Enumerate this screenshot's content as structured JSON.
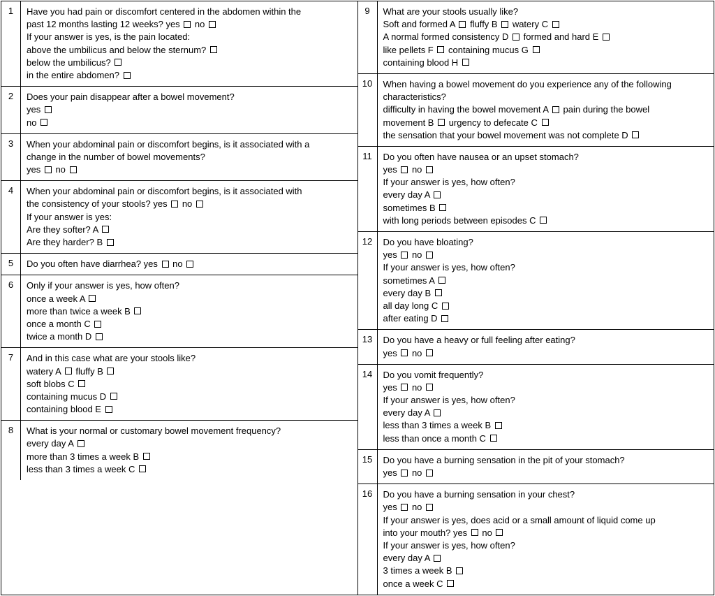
{
  "left": [
    {
      "num": "1",
      "lines": [
        [
          {
            "t": "Have you had pain or discomfort centered in the abdomen within the"
          }
        ],
        [
          {
            "t": "past 12 months lasting 12 weeks?  yes "
          },
          {
            "cb": true
          },
          {
            "t": " no "
          },
          {
            "cb": true
          }
        ],
        [
          {
            "t": "If your answer is yes, is the pain located:"
          }
        ],
        [
          {
            "t": "above the umbilicus and below the sternum?  "
          },
          {
            "cb": true
          }
        ],
        [
          {
            "t": "below the umbilicus?  "
          },
          {
            "cb": true
          }
        ],
        [
          {
            "t": "in the entire abdomen?  "
          },
          {
            "cb": true
          }
        ]
      ]
    },
    {
      "num": "2",
      "lines": [
        [
          {
            "t": "Does your pain disappear after a bowel movement?"
          }
        ],
        [
          {
            "t": "yes "
          },
          {
            "cb": true
          }
        ],
        [
          {
            "t": "no  "
          },
          {
            "cb": true
          }
        ]
      ]
    },
    {
      "num": "3",
      "lines": [
        [
          {
            "t": "When your abdominal pain or discomfort begins, is it associated with a"
          }
        ],
        [
          {
            "t": "change in the number of bowel movements?"
          }
        ],
        [
          {
            "t": "yes "
          },
          {
            "cb": true
          },
          {
            "t": "  no "
          },
          {
            "cb": true
          }
        ]
      ]
    },
    {
      "num": "4",
      "lines": [
        [
          {
            "t": "When your abdominal pain or discomfort begins, is it associated with"
          }
        ],
        [
          {
            "t": "the consistency of your stools?  yes "
          },
          {
            "cb": true
          },
          {
            "t": "   no  "
          },
          {
            "cb": true
          }
        ],
        [
          {
            "t": "If your answer is yes:"
          }
        ],
        [
          {
            "t": "Are they softer? A  "
          },
          {
            "cb": true
          }
        ],
        [
          {
            "t": "Are they harder? B  "
          },
          {
            "cb": true
          }
        ]
      ]
    },
    {
      "num": "5",
      "lines": [
        [
          {
            "t": "Do you often have diarrhea? yes  "
          },
          {
            "cb": true
          },
          {
            "t": "    no "
          },
          {
            "cb": true
          }
        ]
      ]
    },
    {
      "num": "6",
      "lines": [
        [
          {
            "t": "Only if your answer is yes, how often?"
          }
        ],
        [
          {
            "t": "once a week A  "
          },
          {
            "cb": true
          }
        ],
        [
          {
            "t": "more than twice a week B "
          },
          {
            "cb": true
          }
        ],
        [
          {
            "t": "once a month C "
          },
          {
            "cb": true
          }
        ],
        [
          {
            "t": "twice a month D "
          },
          {
            "cb": true
          }
        ]
      ]
    },
    {
      "num": "7",
      "lines": [
        [
          {
            "t": "And in this case what are your stools like?"
          }
        ],
        [
          {
            "t": "watery A "
          },
          {
            "cb": true
          },
          {
            "t": " fluffy B "
          },
          {
            "cb": true
          }
        ],
        [
          {
            "t": "soft blobs C  "
          },
          {
            "cb": true
          }
        ],
        [
          {
            "t": "containing mucus D  "
          },
          {
            "cb": true
          }
        ],
        [
          {
            "t": "containing blood E  "
          },
          {
            "cb": true
          }
        ]
      ]
    },
    {
      "num": "8",
      "lines": [
        [
          {
            "t": "What is your normal or customary bowel movement frequency?"
          }
        ],
        [
          {
            "t": "every day A  "
          },
          {
            "cb": true
          }
        ],
        [
          {
            "t": "more than 3 times a week B "
          },
          {
            "cb": true
          }
        ],
        [
          {
            "t": "less than 3 times a week C "
          },
          {
            "cb": true
          }
        ],
        [
          {
            "t": " "
          }
        ]
      ]
    }
  ],
  "right": [
    {
      "num": "9",
      "lines": [
        [
          {
            "t": "What are your stools usually like?"
          }
        ],
        [
          {
            "t": "Soft and formed A "
          },
          {
            "cb": true
          },
          {
            "t": "   fluffy B  "
          },
          {
            "cb": true
          },
          {
            "t": "  watery C  "
          },
          {
            "cb": true
          }
        ],
        [
          {
            "t": "A normal formed consistency D "
          },
          {
            "cb": true
          },
          {
            "t": "  formed and hard E "
          },
          {
            "cb": true
          }
        ],
        [
          {
            "t": "like pellets F  "
          },
          {
            "cb": true
          },
          {
            "t": "  containing mucus G  "
          },
          {
            "cb": true
          }
        ],
        [
          {
            "t": "containing blood H "
          },
          {
            "cb": true
          }
        ]
      ]
    },
    {
      "num": "10",
      "lines": [
        [
          {
            "t": "When having a bowel movement do you experience any of the following"
          }
        ],
        [
          {
            "t": "characteristics?"
          }
        ],
        [
          {
            "t": "difficulty in having the bowel movement  A "
          },
          {
            "cb": true
          },
          {
            "t": "  pain during the bowel"
          }
        ],
        [
          {
            "t": "movement B "
          },
          {
            "cb": true
          },
          {
            "t": "  urgency to defecate C "
          },
          {
            "cb": true
          }
        ],
        [
          {
            "t": "the sensation that your bowel movement was not complete D "
          },
          {
            "cb": true
          }
        ]
      ]
    },
    {
      "num": "11",
      "lines": [
        [
          {
            "t": "Do you often have nausea or an upset stomach?"
          }
        ],
        [
          {
            "t": "yes  "
          },
          {
            "cb": true
          },
          {
            "t": "   no "
          },
          {
            "cb": true
          }
        ],
        [
          {
            "t": "If your answer is yes, how often?"
          }
        ],
        [
          {
            "t": "every day A  "
          },
          {
            "cb": true
          }
        ],
        [
          {
            "t": "sometimes B "
          },
          {
            "cb": true
          }
        ],
        [
          {
            "t": "with long periods between episodes C "
          },
          {
            "cb": true
          }
        ]
      ]
    },
    {
      "num": "12",
      "lines": [
        [
          {
            "t": "Do you have bloating?"
          }
        ],
        [
          {
            "t": "yes "
          },
          {
            "cb": true
          },
          {
            "t": " no "
          },
          {
            "cb": true
          }
        ],
        [
          {
            "t": "If your answer is yes, how often?"
          }
        ],
        [
          {
            "t": "sometimes A "
          },
          {
            "cb": true
          }
        ],
        [
          {
            "t": "every day B  "
          },
          {
            "cb": true
          }
        ],
        [
          {
            "t": "all day long C "
          },
          {
            "cb": true
          }
        ],
        [
          {
            "t": "after eating D "
          },
          {
            "cb": true
          }
        ]
      ]
    },
    {
      "num": "13",
      "lines": [
        [
          {
            "t": "Do you have a heavy or full feeling after eating?"
          }
        ],
        [
          {
            "t": "yes  "
          },
          {
            "cb": true
          },
          {
            "t": " no "
          },
          {
            "cb": true
          }
        ]
      ]
    },
    {
      "num": "14",
      "lines": [
        [
          {
            "t": "Do you vomit frequently?"
          }
        ],
        [
          {
            "t": "yes "
          },
          {
            "cb": true
          },
          {
            "t": "  no "
          },
          {
            "cb": true
          }
        ],
        [
          {
            "t": "If your answer is yes, how often?"
          }
        ],
        [
          {
            "t": "every day A "
          },
          {
            "cb": true
          }
        ],
        [
          {
            "t": "less than 3 times a week B "
          },
          {
            "cb": true
          }
        ],
        [
          {
            "t": "less than once a month C "
          },
          {
            "cb": true
          }
        ]
      ]
    },
    {
      "num": "15",
      "lines": [
        [
          {
            "t": "Do you have a burning sensation in the pit of your stomach?"
          }
        ],
        [
          {
            "t": "yes "
          },
          {
            "cb": true
          },
          {
            "t": "  no  "
          },
          {
            "cb": true
          }
        ],
        [
          {
            "t": " "
          }
        ]
      ]
    },
    {
      "num": "16",
      "lines": [
        [
          {
            "t": "Do you have a burning sensation in your chest?"
          }
        ],
        [
          {
            "t": "yes "
          },
          {
            "cb": true
          },
          {
            "t": "  no "
          },
          {
            "cb": true
          }
        ],
        [
          {
            "t": "If your answer is yes, does acid or a small amount of liquid come up"
          }
        ],
        [
          {
            "t": "into your mouth?  yes "
          },
          {
            "cb": true
          },
          {
            "t": "  no   "
          },
          {
            "cb": true
          }
        ],
        [
          {
            "t": "If your answer is yes, how often?"
          }
        ],
        [
          {
            "t": "every day A "
          },
          {
            "cb": true
          }
        ],
        [
          {
            "t": "3 times a week B "
          },
          {
            "cb": true
          }
        ],
        [
          {
            "t": "once a week C "
          },
          {
            "cb": true
          }
        ]
      ]
    }
  ]
}
